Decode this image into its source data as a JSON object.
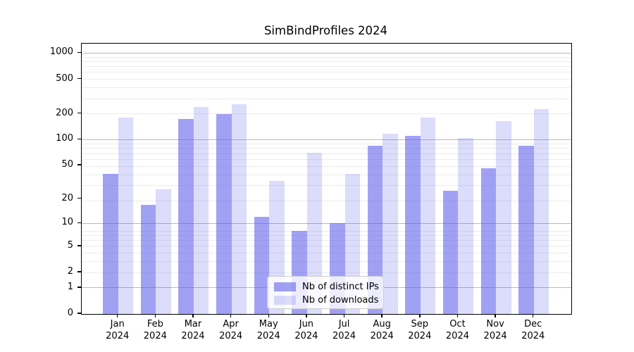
{
  "title": "SimBindProfiles 2024",
  "chart_data": {
    "type": "bar",
    "title": "SimBindProfiles 2024",
    "categories": [
      "Jan",
      "Feb",
      "Mar",
      "Apr",
      "May",
      "Jun",
      "Jul",
      "Aug",
      "Sep",
      "Oct",
      "Nov",
      "Dec"
    ],
    "x_tick_second_line": "2024",
    "series": [
      {
        "name": "Nb of distinct IPs",
        "color": "rgba(88,88,235,0.56)",
        "values": [
          40,
          17,
          175,
          200,
          12,
          8,
          10,
          85,
          110,
          25,
          46,
          85
        ]
      },
      {
        "name": "Nb of downloads",
        "color": "rgba(88,88,235,0.21)",
        "values": [
          180,
          26,
          240,
          260,
          33,
          70,
          40,
          118,
          180,
          105,
          165,
          225
        ]
      }
    ],
    "y_ticks": [
      1000,
      500,
      200,
      100,
      50,
      20,
      10,
      5,
      2,
      1,
      0
    ],
    "y_major_gridline_values": [
      1,
      10,
      100,
      1000
    ],
    "y_minor_subs": [
      2,
      3,
      4,
      5,
      6,
      7,
      8,
      9
    ],
    "y_scale": "log10(value+1)",
    "ylim": [
      0,
      1190
    ],
    "grid": true,
    "legend_position": "lower center",
    "colors": {
      "grid_major": "#b9b9b9",
      "grid_minor": "#ececec",
      "spine": "#000000",
      "text": "#000000",
      "background": "#ffffff"
    }
  }
}
